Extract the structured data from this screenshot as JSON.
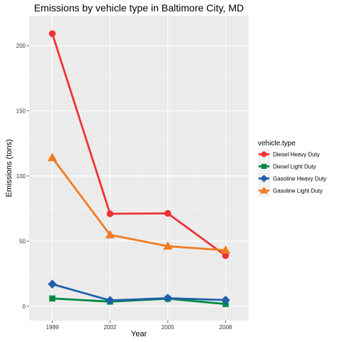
{
  "chart_data": {
    "type": "line",
    "title": "Emissions by vehicle type in Baltimore City, MD",
    "xlabel": "Year",
    "ylabel": "Emissions (tons)",
    "x": [
      1999,
      2002,
      2005,
      2008
    ],
    "xlim": [
      1997.8,
      2009.2
    ],
    "ylim": [
      -11,
      223
    ],
    "yticks": [
      0,
      50,
      100,
      150,
      200
    ],
    "grid": true,
    "legend": {
      "title": "vehicle.type",
      "position": "right"
    },
    "series": [
      {
        "name": "Diesel Heavy Duty",
        "color": "#ee3333",
        "marker": "circle",
        "values": [
          209.2,
          71.0,
          71.3,
          38.9
        ]
      },
      {
        "name": "Diesel Light Duty",
        "color": "#008a44",
        "marker": "square",
        "values": [
          6.0,
          3.6,
          5.8,
          1.8
        ]
      },
      {
        "name": "Gasoline Heavy Duty",
        "color": "#1f5fab",
        "marker": "diamond",
        "values": [
          17.0,
          4.5,
          6.2,
          4.8
        ]
      },
      {
        "name": "Gasoline Light Duty",
        "color": "#f07c22",
        "marker": "triangle",
        "values": [
          114.0,
          54.8,
          46.1,
          43.0
        ]
      }
    ]
  }
}
